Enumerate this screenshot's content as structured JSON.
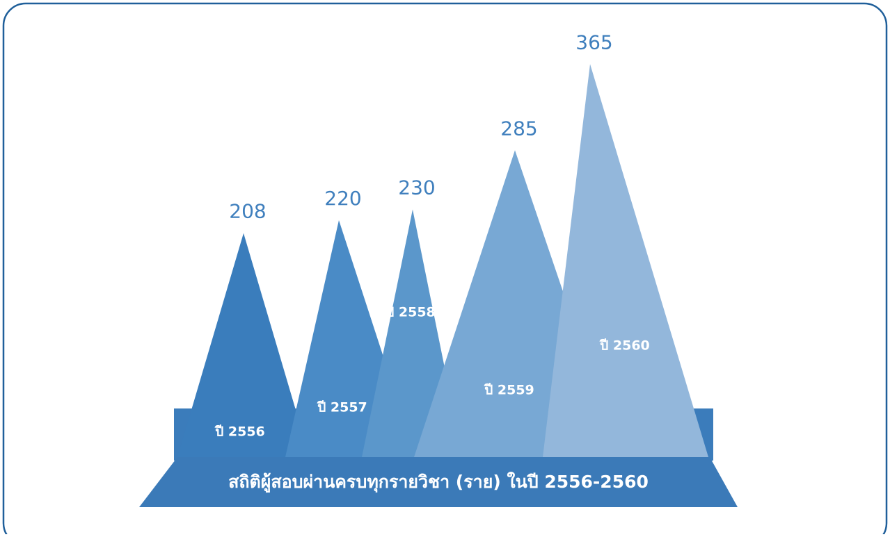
{
  "chart_data": {
    "type": "triangle",
    "title": "สถิติผู้สอบผ่านครบทุกรายวิชา (ราย) ในปี 2556-2560",
    "categories": [
      "ปี 2556",
      "ปี 2557",
      "ปี 2558",
      "ปี 2559",
      "ปี 2560"
    ],
    "values": [
      208,
      220,
      230,
      285,
      365
    ],
    "colors": [
      "#3a7dbc",
      "#4a8bc6",
      "#5b97cb",
      "#78a8d4",
      "#93b7db"
    ]
  }
}
